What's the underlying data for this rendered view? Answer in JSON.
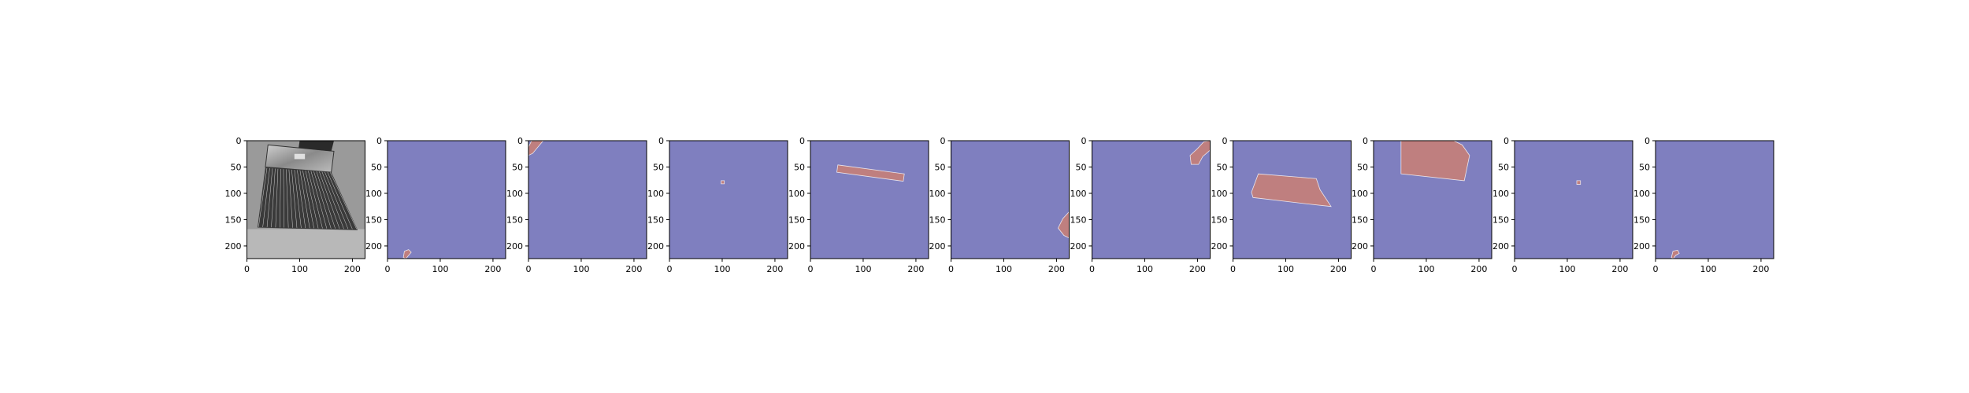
{
  "chart_data": [
    {
      "type": "image",
      "title": "",
      "content": "grayscale photo of a paintbrush",
      "xlim": [
        0,
        224
      ],
      "ylim": [
        224,
        0
      ],
      "xticks": [
        "0",
        "100",
        "200"
      ],
      "yticks": [
        "0",
        "50",
        "100",
        "150",
        "200"
      ]
    },
    {
      "type": "heatmap",
      "title": "",
      "content": "segmentation mask",
      "xlim": [
        0,
        224
      ],
      "ylim": [
        224,
        0
      ],
      "xticks": [
        "0",
        "100",
        "200"
      ],
      "yticks": [
        "0",
        "50",
        "100",
        "150",
        "200"
      ],
      "mask_polygons": [
        [
          [
            30,
            222
          ],
          [
            32,
            210
          ],
          [
            40,
            207
          ],
          [
            45,
            212
          ],
          [
            40,
            218
          ],
          [
            35,
            224
          ]
        ]
      ]
    },
    {
      "type": "heatmap",
      "title": "",
      "content": "segmentation mask",
      "xlim": [
        0,
        224
      ],
      "ylim": [
        224,
        0
      ],
      "xticks": [
        "0",
        "100",
        "200"
      ],
      "yticks": [
        "0",
        "50",
        "100",
        "150",
        "200"
      ],
      "mask_polygons": [
        [
          [
            0,
            28
          ],
          [
            0,
            12
          ],
          [
            6,
            0
          ],
          [
            28,
            0
          ],
          [
            18,
            12
          ],
          [
            8,
            24
          ]
        ]
      ]
    },
    {
      "type": "heatmap",
      "title": "",
      "content": "segmentation mask",
      "xlim": [
        0,
        224
      ],
      "ylim": [
        224,
        0
      ],
      "xticks": [
        "0",
        "100",
        "200"
      ],
      "yticks": [
        "0",
        "50",
        "100",
        "150",
        "200"
      ],
      "mask_polygons": [
        [
          [
            98,
            76
          ],
          [
            104,
            76
          ],
          [
            104,
            82
          ],
          [
            98,
            82
          ]
        ]
      ]
    },
    {
      "type": "heatmap",
      "title": "",
      "content": "segmentation mask",
      "xlim": [
        0,
        224
      ],
      "ylim": [
        224,
        0
      ],
      "xticks": [
        "0",
        "100",
        "200"
      ],
      "yticks": [
        "0",
        "50",
        "100",
        "150",
        "200"
      ],
      "mask_polygons": [
        [
          [
            52,
            46
          ],
          [
            178,
            63
          ],
          [
            176,
            77
          ],
          [
            50,
            60
          ]
        ]
      ]
    },
    {
      "type": "heatmap",
      "title": "",
      "content": "segmentation mask",
      "xlim": [
        0,
        224
      ],
      "ylim": [
        224,
        0
      ],
      "xticks": [
        "0",
        "100",
        "200"
      ],
      "yticks": [
        "0",
        "50",
        "100",
        "150",
        "200"
      ],
      "mask_polygons": [
        [
          [
            224,
            135
          ],
          [
            212,
            148
          ],
          [
            203,
            166
          ],
          [
            214,
            180
          ],
          [
            224,
            185
          ]
        ]
      ]
    },
    {
      "type": "heatmap",
      "title": "",
      "content": "segmentation mask",
      "xlim": [
        0,
        224
      ],
      "ylim": [
        224,
        0
      ],
      "xticks": [
        "0",
        "100",
        "200"
      ],
      "yticks": [
        "0",
        "50",
        "100",
        "150",
        "200"
      ],
      "mask_polygons": [
        [
          [
            188,
            45
          ],
          [
            186,
            28
          ],
          [
            200,
            15
          ],
          [
            212,
            2
          ],
          [
            224,
            0
          ],
          [
            224,
            18
          ],
          [
            210,
            30
          ],
          [
            202,
            45
          ]
        ]
      ]
    },
    {
      "type": "heatmap",
      "title": "",
      "content": "segmentation mask",
      "xlim": [
        0,
        224
      ],
      "ylim": [
        224,
        0
      ],
      "xticks": [
        "0",
        "100",
        "200"
      ],
      "yticks": [
        "0",
        "50",
        "100",
        "150",
        "200"
      ],
      "mask_polygons": [
        [
          [
            48,
            63
          ],
          [
            158,
            72
          ],
          [
            165,
            93
          ],
          [
            186,
            125
          ],
          [
            140,
            120
          ],
          [
            38,
            108
          ],
          [
            35,
            98
          ]
        ]
      ]
    },
    {
      "type": "heatmap",
      "title": "",
      "content": "segmentation mask",
      "xlim": [
        0,
        224
      ],
      "ylim": [
        224,
        0
      ],
      "xticks": [
        "0",
        "100",
        "200"
      ],
      "yticks": [
        "0",
        "50",
        "100",
        "150",
        "200"
      ],
      "mask_polygons": [
        [
          [
            52,
            0
          ],
          [
            152,
            0
          ],
          [
            168,
            8
          ],
          [
            182,
            28
          ],
          [
            172,
            76
          ],
          [
            52,
            63
          ]
        ]
      ]
    },
    {
      "type": "heatmap",
      "title": "",
      "content": "segmentation mask",
      "xlim": [
        0,
        224
      ],
      "ylim": [
        224,
        0
      ],
      "xticks": [
        "0",
        "100",
        "200"
      ],
      "yticks": [
        "0",
        "50",
        "100",
        "150",
        "200"
      ],
      "mask_polygons": [
        [
          [
            118,
            76
          ],
          [
            125,
            76
          ],
          [
            125,
            83
          ],
          [
            118,
            83
          ]
        ]
      ]
    },
    {
      "type": "heatmap",
      "title": "",
      "content": "segmentation mask",
      "xlim": [
        0,
        224
      ],
      "ylim": [
        224,
        0
      ],
      "xticks": [
        "0",
        "100",
        "200"
      ],
      "yticks": [
        "0",
        "50",
        "100",
        "150",
        "200"
      ],
      "mask_polygons": [
        [
          [
            30,
            222
          ],
          [
            33,
            210
          ],
          [
            42,
            208
          ],
          [
            45,
            214
          ],
          [
            38,
            218
          ],
          [
            34,
            224
          ]
        ]
      ]
    }
  ],
  "colors": {
    "mask_background": "#7f7fbf",
    "mask_foreground": "#bf7f7f",
    "axis": "#000000",
    "tick_text": "#000000"
  }
}
